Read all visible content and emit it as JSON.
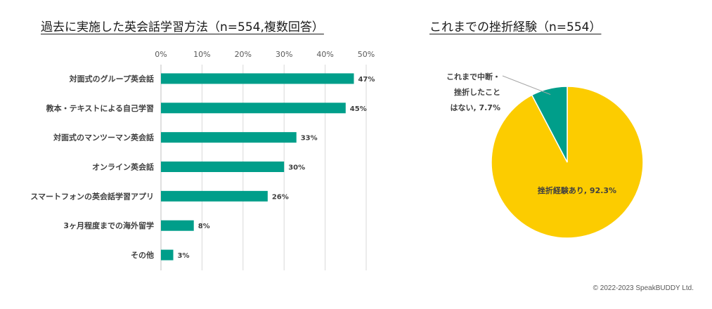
{
  "chart_data": [
    {
      "type": "bar",
      "orientation": "horizontal",
      "title": "過去に実施した英会話学習方法（n=554,複数回答）",
      "categories": [
        "対面式のグループ英会話",
        "教本・テキストによる自己学習",
        "対面式のマンツーマン英会話",
        "オンライン英会話",
        "スマートフォンの英会話学習アプリ",
        "3ヶ月程度までの海外留学",
        "その他"
      ],
      "values": [
        47,
        45,
        33,
        30,
        26,
        8,
        3
      ],
      "value_labels": [
        "47%",
        "45%",
        "33%",
        "30%",
        "26%",
        "8%",
        "3%"
      ],
      "x_ticks": [
        "0%",
        "10%",
        "20%",
        "30%",
        "40%",
        "50%"
      ],
      "xlim": [
        0,
        50
      ],
      "axis_position": "top",
      "grid": true,
      "color": "#009e8a"
    },
    {
      "type": "pie",
      "title": "これまでの挫折経験（n=554）",
      "slices": [
        {
          "label_lines": [
            "挫折経験あり, 92.3%"
          ],
          "value": 92.3,
          "color": "#fccc00"
        },
        {
          "label_lines": [
            "これまで中断・",
            "挫折したこと",
            "はない, 7.7%"
          ],
          "value": 7.7,
          "color": "#009e8a"
        }
      ]
    }
  ],
  "copyright": "© 2022-2023 SpeakBUDDY Ltd."
}
